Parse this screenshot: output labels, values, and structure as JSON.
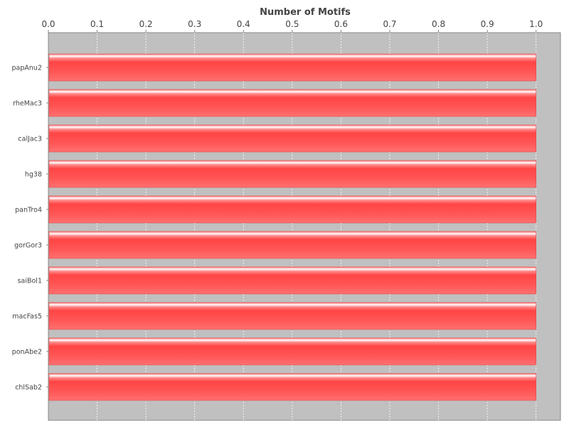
{
  "chart_data": {
    "type": "bar",
    "orientation": "horizontal",
    "xlabel": "Number of Motifs",
    "ylabel": "",
    "xlim": [
      0,
      1.05
    ],
    "ticks": [
      "0.0",
      "0.1",
      "0.2",
      "0.3",
      "0.4",
      "0.5",
      "0.6",
      "0.7",
      "0.8",
      "0.9",
      "1.0"
    ],
    "categories": [
      "papAnu2",
      "rheMac3",
      "calJac3",
      "hg38",
      "panTro4",
      "gorGor3",
      "saiBol1",
      "macFas5",
      "ponAbe2",
      "chlSab2"
    ],
    "values": [
      1,
      1,
      1,
      1,
      1,
      1,
      1,
      1,
      1,
      1
    ],
    "grid": true,
    "legend": "none",
    "colors": {
      "plot_background": "#c0c0c0",
      "bar": "#ff5050",
      "bar_highlight": "#ffffff",
      "gridline": "#ffffff",
      "text": "#444444"
    }
  }
}
